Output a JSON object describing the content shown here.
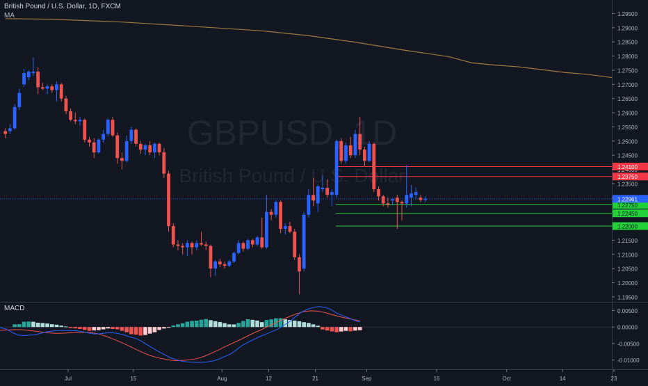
{
  "header": {
    "symbol_title": "British Pound / U.S. Dollar, 1D, FXCM",
    "ma_label": "MA",
    "macd_label": "MACD"
  },
  "watermark": {
    "symbol": "GBPUSD, 1D",
    "description": "British Pound / U.S. Dollar"
  },
  "colors": {
    "background": "#131722",
    "bull": "#2962ff",
    "bear": "#ef5350",
    "ma": "#9c7b3c",
    "resistance": "#f23645",
    "support": "#22d13a",
    "price_line": "#2962ff",
    "macd_line": "#2962ff",
    "signal_line": "#ef5350"
  },
  "chart_data": [
    {
      "type": "candlestick",
      "title": "British Pound / U.S. Dollar, 1D, FXCM",
      "x_tick_labels": [
        "Jul",
        "15",
        "Aug",
        "12",
        "21",
        "Sep",
        "16",
        "Oct",
        "14",
        "23"
      ],
      "y_tick_labels": [
        "1.29500",
        "1.29000",
        "1.28500",
        "1.28000",
        "1.27500",
        "1.27000",
        "1.26500",
        "1.26000",
        "1.25500",
        "1.25000",
        "1.24500",
        "1.24000",
        "1.23500",
        "1.23000",
        "1.22500",
        "1.22000",
        "1.21500",
        "1.21000",
        "1.20500",
        "1.20000",
        "1.19500"
      ],
      "ylim": [
        1.1935,
        1.2988
      ],
      "current_price": {
        "label": "1.22961",
        "value": 1.22961
      },
      "horizontal_levels": [
        {
          "label": "1.24100",
          "value": 1.241,
          "kind": "resistance"
        },
        {
          "label": "1.23750",
          "value": 1.2375,
          "kind": "resistance"
        },
        {
          "label": "1.22750",
          "value": 1.2275,
          "kind": "support"
        },
        {
          "label": "1.22450",
          "value": 1.2245,
          "kind": "support"
        },
        {
          "label": "1.22000",
          "value": 1.22,
          "kind": "support"
        }
      ],
      "moving_average": {
        "name": "MA",
        "points": [
          [
            0,
            1.2932
          ],
          [
            10,
            1.293
          ],
          [
            25,
            1.292
          ],
          [
            40,
            1.2905
          ],
          [
            55,
            1.2889
          ],
          [
            65,
            1.2872
          ],
          [
            75,
            1.2849
          ],
          [
            85,
            1.2822
          ],
          [
            95,
            1.2798
          ],
          [
            100,
            1.2776
          ],
          [
            105,
            1.2768
          ],
          [
            110,
            1.2762
          ],
          [
            115,
            1.2752
          ],
          [
            120,
            1.2742
          ],
          [
            125,
            1.2735
          ],
          [
            130,
            1.2724
          ]
        ]
      },
      "candles": [
        {
          "o": 1.2535,
          "h": 1.2545,
          "l": 1.251,
          "c": 1.2525
        },
        {
          "o": 1.2535,
          "h": 1.256,
          "l": 1.2525,
          "c": 1.2545
        },
        {
          "o": 1.2545,
          "h": 1.263,
          "l": 1.254,
          "c": 1.262
        },
        {
          "o": 1.262,
          "h": 1.2685,
          "l": 1.261,
          "c": 1.267
        },
        {
          "o": 1.27,
          "h": 1.2755,
          "l": 1.269,
          "c": 1.274
        },
        {
          "o": 1.2725,
          "h": 1.275,
          "l": 1.2715,
          "c": 1.2745
        },
        {
          "o": 1.274,
          "h": 1.2795,
          "l": 1.273,
          "c": 1.2745
        },
        {
          "o": 1.2745,
          "h": 1.276,
          "l": 1.2665,
          "c": 1.269
        },
        {
          "o": 1.269,
          "h": 1.2705,
          "l": 1.268,
          "c": 1.2685
        },
        {
          "o": 1.2685,
          "h": 1.27,
          "l": 1.2665,
          "c": 1.2693
        },
        {
          "o": 1.2693,
          "h": 1.27,
          "l": 1.267,
          "c": 1.268
        },
        {
          "o": 1.268,
          "h": 1.271,
          "l": 1.264,
          "c": 1.27
        },
        {
          "o": 1.27,
          "h": 1.2705,
          "l": 1.264,
          "c": 1.265
        },
        {
          "o": 1.265,
          "h": 1.266,
          "l": 1.2595,
          "c": 1.2605
        },
        {
          "o": 1.2605,
          "h": 1.2615,
          "l": 1.257,
          "c": 1.2575
        },
        {
          "o": 1.2575,
          "h": 1.26,
          "l": 1.256,
          "c": 1.257
        },
        {
          "o": 1.257,
          "h": 1.2585,
          "l": 1.2555,
          "c": 1.2575
        },
        {
          "o": 1.2575,
          "h": 1.258,
          "l": 1.2495,
          "c": 1.2505
        },
        {
          "o": 1.2505,
          "h": 1.2515,
          "l": 1.248,
          "c": 1.2495
        },
        {
          "o": 1.2495,
          "h": 1.251,
          "l": 1.244,
          "c": 1.246
        },
        {
          "o": 1.246,
          "h": 1.251,
          "l": 1.2455,
          "c": 1.2505
        },
        {
          "o": 1.2505,
          "h": 1.254,
          "l": 1.2495,
          "c": 1.2525
        },
        {
          "o": 1.2525,
          "h": 1.258,
          "l": 1.2515,
          "c": 1.2575
        },
        {
          "o": 1.2575,
          "h": 1.2585,
          "l": 1.2515,
          "c": 1.252
        },
        {
          "o": 1.252,
          "h": 1.253,
          "l": 1.242,
          "c": 1.244
        },
        {
          "o": 1.244,
          "h": 1.246,
          "l": 1.24,
          "c": 1.243
        },
        {
          "o": 1.243,
          "h": 1.252,
          "l": 1.2425,
          "c": 1.25
        },
        {
          "o": 1.25,
          "h": 1.255,
          "l": 1.249,
          "c": 1.254
        },
        {
          "o": 1.254,
          "h": 1.2545,
          "l": 1.248,
          "c": 1.249
        },
        {
          "o": 1.249,
          "h": 1.25,
          "l": 1.2455,
          "c": 1.247
        },
        {
          "o": 1.247,
          "h": 1.249,
          "l": 1.245,
          "c": 1.2485
        },
        {
          "o": 1.2485,
          "h": 1.25,
          "l": 1.245,
          "c": 1.246
        },
        {
          "o": 1.246,
          "h": 1.2495,
          "l": 1.244,
          "c": 1.249
        },
        {
          "o": 1.249,
          "h": 1.2495,
          "l": 1.245,
          "c": 1.246
        },
        {
          "o": 1.246,
          "h": 1.2475,
          "l": 1.237,
          "c": 1.2385
        },
        {
          "o": 1.2385,
          "h": 1.2395,
          "l": 1.218,
          "c": 1.22
        },
        {
          "o": 1.22,
          "h": 1.221,
          "l": 1.2125,
          "c": 1.2135
        },
        {
          "o": 1.2135,
          "h": 1.215,
          "l": 1.2115,
          "c": 1.213
        },
        {
          "o": 1.213,
          "h": 1.214,
          "l": 1.21,
          "c": 1.2125
        },
        {
          "o": 1.2125,
          "h": 1.215,
          "l": 1.2095,
          "c": 1.214
        },
        {
          "o": 1.214,
          "h": 1.2145,
          "l": 1.21,
          "c": 1.2125
        },
        {
          "o": 1.2125,
          "h": 1.215,
          "l": 1.2115,
          "c": 1.214
        },
        {
          "o": 1.214,
          "h": 1.218,
          "l": 1.213,
          "c": 1.2135
        },
        {
          "o": 1.2135,
          "h": 1.2145,
          "l": 1.2115,
          "c": 1.213
        },
        {
          "o": 1.213,
          "h": 1.2135,
          "l": 1.202,
          "c": 1.205
        },
        {
          "o": 1.205,
          "h": 1.208,
          "l": 1.2025,
          "c": 1.2075
        },
        {
          "o": 1.2075,
          "h": 1.2085,
          "l": 1.2055,
          "c": 1.2065
        },
        {
          "o": 1.2065,
          "h": 1.2075,
          "l": 1.205,
          "c": 1.206
        },
        {
          "o": 1.206,
          "h": 1.208,
          "l": 1.2055,
          "c": 1.2075
        },
        {
          "o": 1.2075,
          "h": 1.211,
          "l": 1.207,
          "c": 1.2105
        },
        {
          "o": 1.2105,
          "h": 1.215,
          "l": 1.21,
          "c": 1.214
        },
        {
          "o": 1.214,
          "h": 1.2145,
          "l": 1.211,
          "c": 1.212
        },
        {
          "o": 1.212,
          "h": 1.2155,
          "l": 1.2115,
          "c": 1.215
        },
        {
          "o": 1.215,
          "h": 1.2155,
          "l": 1.2125,
          "c": 1.2135
        },
        {
          "o": 1.2135,
          "h": 1.2165,
          "l": 1.213,
          "c": 1.216
        },
        {
          "o": 1.216,
          "h": 1.223,
          "l": 1.212,
          "c": 1.2125
        },
        {
          "o": 1.2125,
          "h": 1.231,
          "l": 1.212,
          "c": 1.225
        },
        {
          "o": 1.225,
          "h": 1.226,
          "l": 1.222,
          "c": 1.224
        },
        {
          "o": 1.224,
          "h": 1.229,
          "l": 1.223,
          "c": 1.2285
        },
        {
          "o": 1.2285,
          "h": 1.229,
          "l": 1.2175,
          "c": 1.219
        },
        {
          "o": 1.219,
          "h": 1.221,
          "l": 1.217,
          "c": 1.22
        },
        {
          "o": 1.22,
          "h": 1.2215,
          "l": 1.2175,
          "c": 1.218
        },
        {
          "o": 1.218,
          "h": 1.219,
          "l": 1.208,
          "c": 1.209
        },
        {
          "o": 1.209,
          "h": 1.21,
          "l": 1.196,
          "c": 1.204
        },
        {
          "o": 1.205,
          "h": 1.225,
          "l": 1.204,
          "c": 1.224
        },
        {
          "o": 1.224,
          "h": 1.233,
          "l": 1.223,
          "c": 1.231
        },
        {
          "o": 1.231,
          "h": 1.237,
          "l": 1.227,
          "c": 1.229
        },
        {
          "o": 1.228,
          "h": 1.2345,
          "l": 1.225,
          "c": 1.234
        },
        {
          "o": 1.233,
          "h": 1.238,
          "l": 1.232,
          "c": 1.2335
        },
        {
          "o": 1.2335,
          "h": 1.2365,
          "l": 1.23,
          "c": 1.231
        },
        {
          "o": 1.231,
          "h": 1.233,
          "l": 1.227,
          "c": 1.232
        },
        {
          "o": 1.231,
          "h": 1.2505,
          "l": 1.23,
          "c": 1.25
        },
        {
          "o": 1.25,
          "h": 1.251,
          "l": 1.242,
          "c": 1.243
        },
        {
          "o": 1.243,
          "h": 1.2495,
          "l": 1.242,
          "c": 1.2485
        },
        {
          "o": 1.2485,
          "h": 1.2515,
          "l": 1.244,
          "c": 1.245
        },
        {
          "o": 1.245,
          "h": 1.254,
          "l": 1.244,
          "c": 1.2525
        },
        {
          "o": 1.2525,
          "h": 1.2585,
          "l": 1.245,
          "c": 1.247
        },
        {
          "o": 1.247,
          "h": 1.248,
          "l": 1.241,
          "c": 1.243
        },
        {
          "o": 1.243,
          "h": 1.25,
          "l": 1.2425,
          "c": 1.249
        },
        {
          "o": 1.249,
          "h": 1.2495,
          "l": 1.232,
          "c": 1.233
        },
        {
          "o": 1.233,
          "h": 1.234,
          "l": 1.229,
          "c": 1.2305
        },
        {
          "o": 1.2305,
          "h": 1.231,
          "l": 1.227,
          "c": 1.228
        },
        {
          "o": 1.228,
          "h": 1.23,
          "l": 1.2265,
          "c": 1.2275
        },
        {
          "o": 1.229,
          "h": 1.23,
          "l": 1.2275,
          "c": 1.2295
        },
        {
          "o": 1.23,
          "h": 1.231,
          "l": 1.219,
          "c": 1.2285
        },
        {
          "o": 1.2285,
          "h": 1.229,
          "l": 1.222,
          "c": 1.228
        },
        {
          "o": 1.228,
          "h": 1.2415,
          "l": 1.2265,
          "c": 1.231
        },
        {
          "o": 1.23,
          "h": 1.2345,
          "l": 1.227,
          "c": 1.2315
        },
        {
          "o": 1.231,
          "h": 1.2335,
          "l": 1.2295,
          "c": 1.232
        },
        {
          "o": 1.23,
          "h": 1.231,
          "l": 1.2285,
          "c": 1.2292
        },
        {
          "o": 1.2292,
          "h": 1.2305,
          "l": 1.2285,
          "c": 1.2296
        }
      ]
    },
    {
      "type": "bar",
      "title": "MACD",
      "y_tick_labels": [
        "0.00500",
        "0.00000",
        "-0.00500",
        "-0.01000"
      ],
      "ylim": [
        -0.0128,
        0.0072
      ],
      "histogram": [
        0.00081,
        0.00086,
        0.00161,
        0.00168,
        0.00159,
        0.00131,
        0.00122,
        0.00106,
        0.00085,
        0.0007,
        0.00042,
        0.00017,
        -0.00034,
        -0.00043,
        -0.00059,
        -0.0009,
        -0.00115,
        -0.00104,
        -0.00096,
        -0.00072,
        -0.00044,
        -0.00059,
        -0.0007,
        -0.00114,
        -0.00158,
        -0.00218,
        -0.00231,
        -0.00258,
        -0.00241,
        -0.00199,
        -0.00159,
        -0.00089,
        -0.00046,
        -5e-05,
        0.00046,
        0.00082,
        0.00114,
        0.00161,
        0.00185,
        0.00192,
        0.0022,
        0.00241,
        0.00208,
        0.00176,
        0.0015,
        0.00116,
        0.00082,
        0.00078,
        0.00127,
        0.00185,
        0.00236,
        0.00218,
        0.00196,
        0.00148,
        0.00213,
        0.00233,
        0.00265,
        0.00265,
        0.00233,
        0.00216,
        0.00195,
        0.00175,
        0.00146,
        0.00123,
        0.00081,
        0.00039,
        -0.00074,
        -0.00105,
        -0.00133,
        -0.00158,
        -0.00136,
        -0.00116,
        -0.00129,
        -0.00108,
        -0.00098
      ],
      "macd_line": [
        -0.00015,
        -0.0006,
        -0.00155,
        -0.0024,
        -0.0026,
        -0.00245,
        -0.0023,
        -0.00185,
        -0.0014,
        -0.0012,
        -0.00105,
        -0.001,
        -0.0011,
        -0.00115,
        -0.0014,
        -0.0018,
        -0.0021,
        -0.002,
        -0.0018,
        -0.0017,
        -0.00195,
        -0.00235,
        -0.003,
        -0.00345,
        -0.00435,
        -0.00545,
        -0.0065,
        -0.00755,
        -0.0085,
        -0.00935,
        -0.01,
        -0.0104,
        -0.0106,
        -0.0107,
        -0.0107,
        -0.0106,
        -0.0103,
        -0.0098,
        -0.009,
        -0.00825,
        -0.007,
        -0.0056,
        -0.00465,
        -0.0038,
        -0.0029,
        -0.0022,
        -0.00145,
        -0.0007,
        0.0004,
        0.0015,
        0.003,
        0.0044,
        0.0053,
        0.0059,
        0.0062,
        0.006,
        0.0054,
        0.0043,
        0.0035,
        0.0028,
        0.0021,
        0.0015
      ],
      "signal_line": [
        -0.001,
        -0.0009,
        -0.0008,
        -0.0008,
        -0.001,
        -0.00125,
        -0.00155,
        -0.0018,
        -0.0019,
        -0.00185,
        -0.00175,
        -0.00165,
        -0.0016,
        -0.0017,
        -0.0021,
        -0.0028,
        -0.0036,
        -0.0045,
        -0.00545,
        -0.0065,
        -0.0075,
        -0.0084,
        -0.0091,
        -0.0096,
        -0.01,
        -0.0102,
        -0.0101,
        -0.0099,
        -0.0095,
        -0.0088,
        -0.0079,
        -0.0069,
        -0.00585,
        -0.00485,
        -0.00385,
        -0.0028,
        -0.00175,
        -0.00085,
        0.0002,
        0.0012,
        0.0023,
        0.00315,
        0.004,
        0.00465,
        0.0049,
        0.0048,
        0.0044,
        0.0038,
        0.0032,
        0.0027,
        0.0023,
        0.0018
      ]
    }
  ]
}
